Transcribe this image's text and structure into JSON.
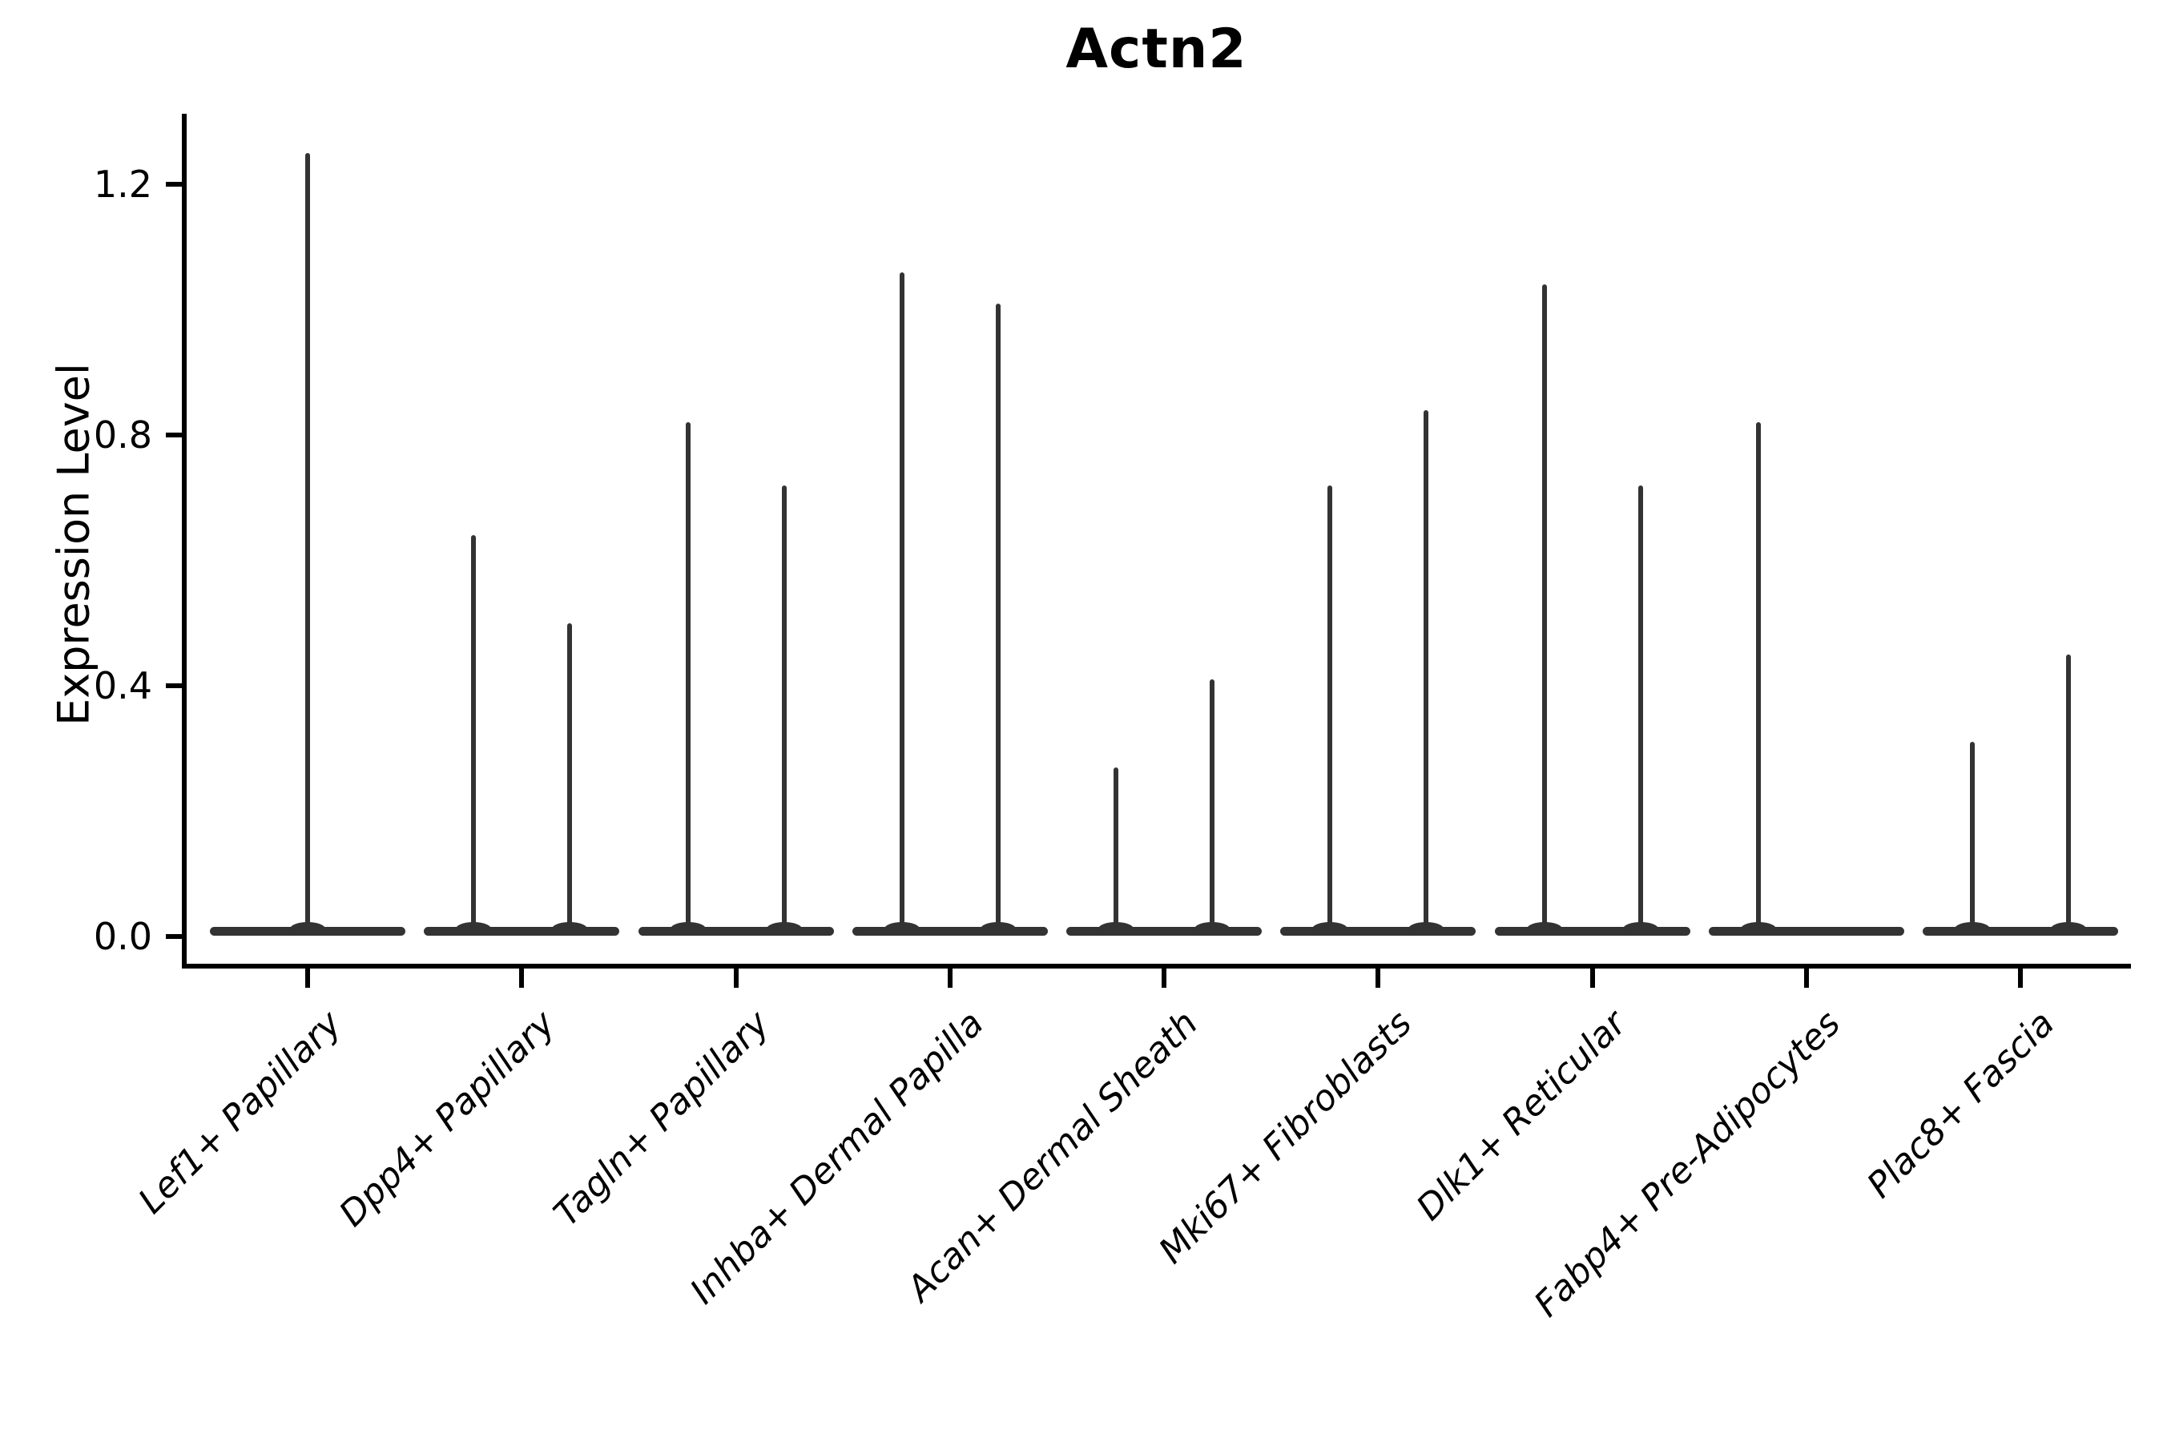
{
  "title": "Actn2",
  "ylabel": "Expression Level",
  "colors": {
    "violin": "#333333",
    "axis": "#000000",
    "text": "#000000"
  },
  "chart_data": {
    "type": "violin",
    "title": "Actn2",
    "xlabel": "",
    "ylabel": "Expression Level",
    "ylim": [
      -0.05,
      1.31
    ],
    "yticks": [
      {
        "value": 0.0,
        "label": "0.0"
      },
      {
        "value": 0.4,
        "label": "0.4"
      },
      {
        "value": 0.8,
        "label": "0.8"
      },
      {
        "value": 1.2,
        "label": "1.2"
      }
    ],
    "grid": false,
    "legend": "none",
    "note": "Violin plot; nearly all density lies at 0 (flat base bar per group) with thin spikes rising to each violin's maximum expression value. Groups with two violins have spikes at left/right sub-positions.",
    "categories": [
      "Lef1+ Papillary",
      "Dpp4+ Papillary",
      "Tagln+ Papillary",
      "Inhba+ Dermal Papilla",
      "Acan+ Dermal Sheath",
      "Mki67+ Fibroblasts",
      "Dlk1+ Reticular",
      "Fabp4+ Pre-Adipocytes",
      "Plac8+ Fascia"
    ],
    "groups": [
      {
        "label": "Lef1+ Papillary",
        "spikes": [
          {
            "pos": "center",
            "max": 1.25
          }
        ]
      },
      {
        "label": "Dpp4+ Papillary",
        "spikes": [
          {
            "pos": "left",
            "max": 0.64
          },
          {
            "pos": "right",
            "max": 0.5
          }
        ]
      },
      {
        "label": "Tagln+ Papillary",
        "spikes": [
          {
            "pos": "left",
            "max": 0.82
          },
          {
            "pos": "right",
            "max": 0.72
          }
        ]
      },
      {
        "label": "Inhba+ Dermal Papilla",
        "spikes": [
          {
            "pos": "left",
            "max": 1.06
          },
          {
            "pos": "right",
            "max": 1.01
          }
        ]
      },
      {
        "label": "Acan+ Dermal Sheath",
        "spikes": [
          {
            "pos": "left",
            "max": 0.27
          },
          {
            "pos": "right",
            "max": 0.41
          }
        ]
      },
      {
        "label": "Mki67+ Fibroblasts",
        "spikes": [
          {
            "pos": "left",
            "max": 0.72
          },
          {
            "pos": "right",
            "max": 0.84
          }
        ]
      },
      {
        "label": "Dlk1+ Reticular",
        "spikes": [
          {
            "pos": "left",
            "max": 1.04
          },
          {
            "pos": "right",
            "max": 0.72
          }
        ]
      },
      {
        "label": "Fabp4+ Pre-Adipocytes",
        "spikes": [
          {
            "pos": "left",
            "max": 0.82
          }
        ]
      },
      {
        "label": "Plac8+ Fascia",
        "spikes": [
          {
            "pos": "left",
            "max": 0.31
          },
          {
            "pos": "right",
            "max": 0.45
          }
        ]
      }
    ]
  }
}
